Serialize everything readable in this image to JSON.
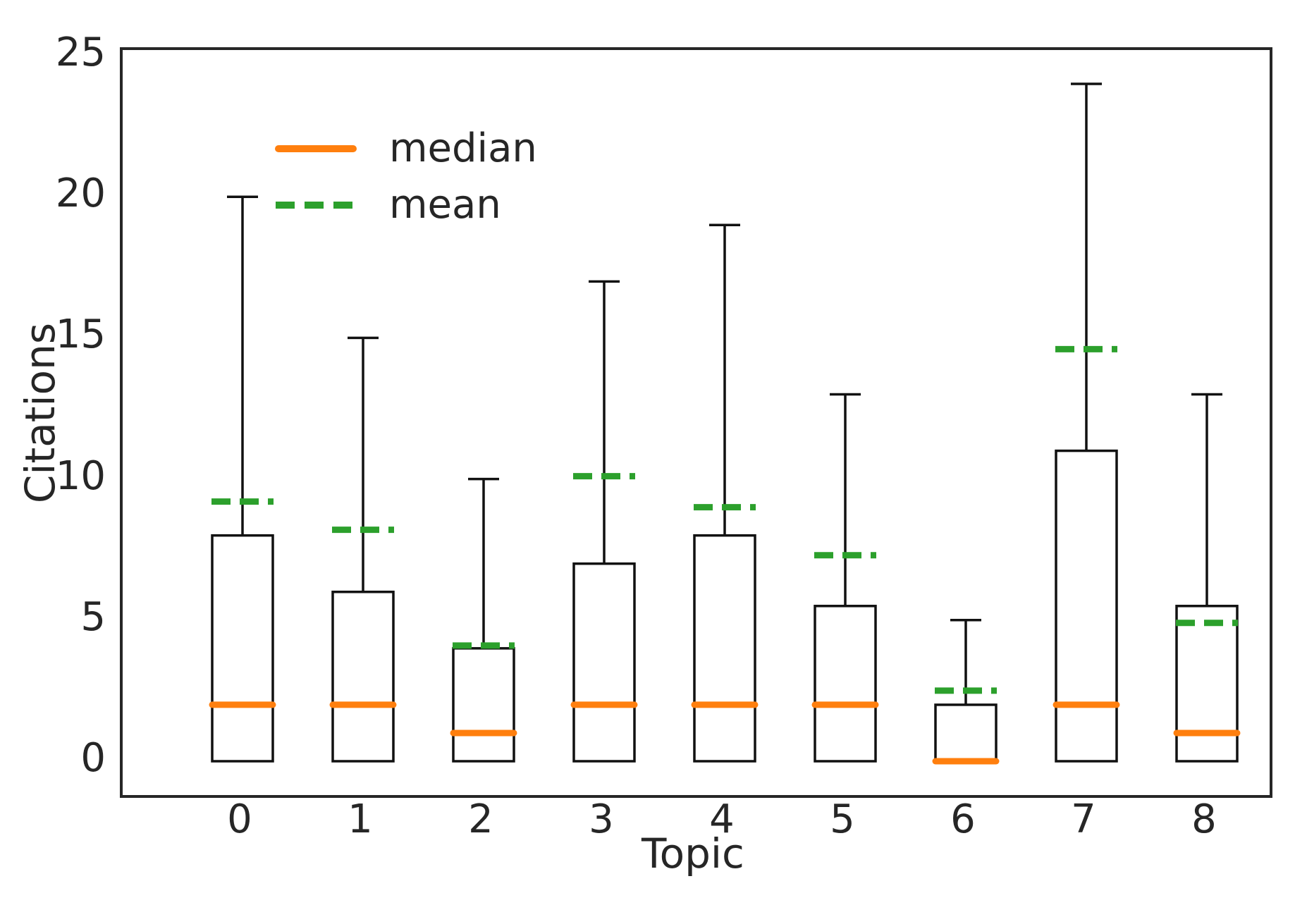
{
  "chart_data": {
    "type": "box",
    "title": "",
    "xlabel": "Topic",
    "ylabel": "Citations",
    "categories": [
      "0",
      "1",
      "2",
      "3",
      "4",
      "5",
      "6",
      "7",
      "8"
    ],
    "ylim": [
      0,
      25
    ],
    "yticks": [
      0,
      5,
      10,
      15,
      20,
      25
    ],
    "grid": false,
    "legend_position": "upper-left",
    "legend": [
      {
        "label": "median",
        "color": "#ff7f0e",
        "style": "solid"
      },
      {
        "label": "mean",
        "color": "#2ca02c",
        "style": "dashed"
      }
    ],
    "boxes": [
      {
        "topic": "0",
        "whisker_low": 0,
        "q1": 0,
        "median": 2,
        "q3": 8,
        "whisker_high": 20,
        "mean": 9.2
      },
      {
        "topic": "1",
        "whisker_low": 0,
        "q1": 0,
        "median": 2,
        "q3": 6,
        "whisker_high": 15,
        "mean": 8.2
      },
      {
        "topic": "2",
        "whisker_low": 0,
        "q1": 0,
        "median": 1,
        "q3": 4,
        "whisker_high": 10,
        "mean": 4.1
      },
      {
        "topic": "3",
        "whisker_low": 0,
        "q1": 0,
        "median": 2,
        "q3": 7,
        "whisker_high": 17,
        "mean": 10.1
      },
      {
        "topic": "4",
        "whisker_low": 0,
        "q1": 0,
        "median": 2,
        "q3": 8,
        "whisker_high": 19,
        "mean": 9.0
      },
      {
        "topic": "5",
        "whisker_low": 0,
        "q1": 0,
        "median": 2,
        "q3": 5.5,
        "whisker_high": 13,
        "mean": 7.3
      },
      {
        "topic": "6",
        "whisker_low": 0,
        "q1": 0,
        "median": 0,
        "q3": 2,
        "whisker_high": 5,
        "mean": 2.5
      },
      {
        "topic": "7",
        "whisker_low": 0,
        "q1": 0,
        "median": 2,
        "q3": 11,
        "whisker_high": 24,
        "mean": 14.6
      },
      {
        "topic": "8",
        "whisker_low": 0,
        "q1": 0,
        "median": 1,
        "q3": 5.5,
        "whisker_high": 13,
        "mean": 4.9
      }
    ],
    "colors": {
      "median_line": "#ff7f0e",
      "mean_line": "#2ca02c",
      "box_line": "#111111",
      "axis": "#262626",
      "text": "#262626",
      "background": "#ffffff"
    }
  }
}
